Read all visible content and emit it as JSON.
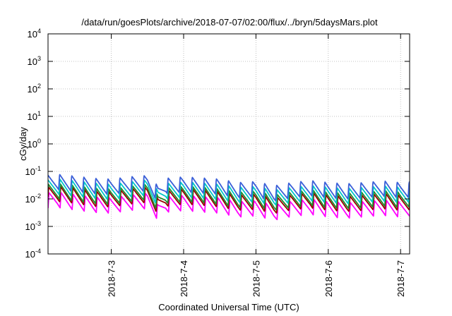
{
  "chart_data": {
    "type": "line",
    "title": "/data/run/goesPlots/archive/2018-07-07/02:00/flux/../bryn/5daysMars.plot",
    "xlabel": "Coordinated Universal Time (UTC)",
    "ylabel": "cGy/day",
    "yscale": "log",
    "ylim": [
      0.0001,
      10000
    ],
    "xlim": [
      "2018-07-02T03:00",
      "2018-07-07T03:00"
    ],
    "grid": true,
    "legend": "none",
    "x_ticks": [
      {
        "x": "2018-07-03T00:00",
        "label": "2018-7-3"
      },
      {
        "x": "2018-07-04T00:00",
        "label": "2018-7-4"
      },
      {
        "x": "2018-07-05T00:00",
        "label": "2018-7-5"
      },
      {
        "x": "2018-07-06T00:00",
        "label": "2018-7-6"
      },
      {
        "x": "2018-07-07T00:00",
        "label": "2018-7-7"
      }
    ],
    "y_ticks": [
      {
        "y": 0.0001,
        "base": "10",
        "exp": "-4"
      },
      {
        "y": 0.001,
        "base": "10",
        "exp": "-3"
      },
      {
        "y": 0.01,
        "base": "10",
        "exp": "-2"
      },
      {
        "y": 0.1,
        "base": "10",
        "exp": "-1"
      },
      {
        "y": 1,
        "base": "10",
        "exp": "0"
      },
      {
        "y": 10,
        "base": "10",
        "exp": "1"
      },
      {
        "y": 100,
        "base": "10",
        "exp": "2"
      },
      {
        "y": 1000,
        "base": "10",
        "exp": "3"
      },
      {
        "y": 10000,
        "base": "10",
        "exp": "4"
      }
    ],
    "series": [
      {
        "color": "#ff00ff",
        "points": [
          [
            "2018-07-02T03:00",
            0.0088
          ],
          [
            "2018-07-02T06:00",
            0.0094
          ],
          [
            "2018-07-02T12:00",
            0.0076
          ],
          [
            "2018-07-02T18:00",
            0.0062
          ],
          [
            "2018-07-03T00:00",
            0.0058
          ],
          [
            "2018-07-03T06:00",
            0.0072
          ],
          [
            "2018-07-03T12:00",
            0.0085
          ],
          [
            "2018-07-03T15:30",
            0.0033
          ],
          [
            "2018-07-03T18:00",
            0.0062
          ],
          [
            "2018-07-04T00:00",
            0.0072
          ],
          [
            "2018-07-04T06:00",
            0.0064
          ],
          [
            "2018-07-04T12:00",
            0.0058
          ],
          [
            "2018-07-04T18:00",
            0.0042
          ],
          [
            "2018-07-05T00:00",
            0.0046
          ],
          [
            "2018-07-05T06:00",
            0.0032
          ],
          [
            "2018-07-05T12:00",
            0.0044
          ],
          [
            "2018-07-05T18:00",
            0.0052
          ],
          [
            "2018-07-06T00:00",
            0.0042
          ],
          [
            "2018-07-06T06:00",
            0.0038
          ],
          [
            "2018-07-06T12:00",
            0.0043
          ],
          [
            "2018-07-06T18:00",
            0.0048
          ],
          [
            "2018-07-07T00:00",
            0.0042
          ],
          [
            "2018-07-07T03:00",
            0.0045
          ]
        ]
      },
      {
        "color": "#990000",
        "points": [
          [
            "2018-07-02T03:00",
            0.014
          ],
          [
            "2018-07-02T06:00",
            0.015
          ],
          [
            "2018-07-02T12:00",
            0.013
          ],
          [
            "2018-07-02T18:00",
            0.01
          ],
          [
            "2018-07-03T00:00",
            0.0095
          ],
          [
            "2018-07-03T06:00",
            0.012
          ],
          [
            "2018-07-03T12:00",
            0.014
          ],
          [
            "2018-07-03T15:30",
            0.0055
          ],
          [
            "2018-07-03T18:00",
            0.01
          ],
          [
            "2018-07-04T00:00",
            0.012
          ],
          [
            "2018-07-04T06:00",
            0.011
          ],
          [
            "2018-07-04T12:00",
            0.0095
          ],
          [
            "2018-07-04T18:00",
            0.0072
          ],
          [
            "2018-07-05T00:00",
            0.0078
          ],
          [
            "2018-07-05T06:00",
            0.0055
          ],
          [
            "2018-07-05T12:00",
            0.0075
          ],
          [
            "2018-07-05T18:00",
            0.0088
          ],
          [
            "2018-07-06T00:00",
            0.0072
          ],
          [
            "2018-07-06T06:00",
            0.0065
          ],
          [
            "2018-07-06T12:00",
            0.0072
          ],
          [
            "2018-07-06T18:00",
            0.0082
          ],
          [
            "2018-07-07T00:00",
            0.0072
          ],
          [
            "2018-07-07T03:00",
            0.0076
          ]
        ]
      },
      {
        "color": "#1e8c2d",
        "points": [
          [
            "2018-07-02T03:00",
            0.018
          ],
          [
            "2018-07-02T06:00",
            0.019
          ],
          [
            "2018-07-02T12:00",
            0.016
          ],
          [
            "2018-07-02T18:00",
            0.013
          ],
          [
            "2018-07-03T00:00",
            0.012
          ],
          [
            "2018-07-03T06:00",
            0.015
          ],
          [
            "2018-07-03T12:00",
            0.018
          ],
          [
            "2018-07-03T15:30",
            0.0072
          ],
          [
            "2018-07-03T18:00",
            0.013
          ],
          [
            "2018-07-04T00:00",
            0.015
          ],
          [
            "2018-07-04T06:00",
            0.014
          ],
          [
            "2018-07-04T12:00",
            0.012
          ],
          [
            "2018-07-04T18:00",
            0.0092
          ],
          [
            "2018-07-05T00:00",
            0.01
          ],
          [
            "2018-07-05T06:00",
            0.0072
          ],
          [
            "2018-07-05T12:00",
            0.0095
          ],
          [
            "2018-07-05T18:00",
            0.011
          ],
          [
            "2018-07-06T00:00",
            0.0092
          ],
          [
            "2018-07-06T06:00",
            0.0084
          ],
          [
            "2018-07-06T12:00",
            0.0092
          ],
          [
            "2018-07-06T18:00",
            0.0105
          ],
          [
            "2018-07-07T00:00",
            0.0092
          ],
          [
            "2018-07-07T03:00",
            0.0098
          ]
        ]
      },
      {
        "color": "#00c8c8",
        "points": [
          [
            "2018-07-02T03:00",
            0.026
          ],
          [
            "2018-07-02T06:00",
            0.028
          ],
          [
            "2018-07-02T12:00",
            0.024
          ],
          [
            "2018-07-02T18:00",
            0.02
          ],
          [
            "2018-07-03T00:00",
            0.018
          ],
          [
            "2018-07-03T06:00",
            0.022
          ],
          [
            "2018-07-03T12:00",
            0.026
          ],
          [
            "2018-07-03T15:30",
            0.011
          ],
          [
            "2018-07-03T18:00",
            0.019
          ],
          [
            "2018-07-04T00:00",
            0.022
          ],
          [
            "2018-07-04T06:00",
            0.02
          ],
          [
            "2018-07-04T12:00",
            0.018
          ],
          [
            "2018-07-04T18:00",
            0.014
          ],
          [
            "2018-07-05T00:00",
            0.015
          ],
          [
            "2018-07-05T06:00",
            0.011
          ],
          [
            "2018-07-05T12:00",
            0.014
          ],
          [
            "2018-07-05T18:00",
            0.016
          ],
          [
            "2018-07-06T00:00",
            0.014
          ],
          [
            "2018-07-06T06:00",
            0.0125
          ],
          [
            "2018-07-06T12:00",
            0.014
          ],
          [
            "2018-07-06T18:00",
            0.0155
          ],
          [
            "2018-07-07T00:00",
            0.014
          ],
          [
            "2018-07-07T03:00",
            0.0145
          ]
        ]
      },
      {
        "color": "#3a5fd8",
        "points": [
          [
            "2018-07-02T03:00",
            0.04
          ],
          [
            "2018-07-02T06:00",
            0.042
          ],
          [
            "2018-07-02T12:00",
            0.036
          ],
          [
            "2018-07-02T18:00",
            0.03
          ],
          [
            "2018-07-03T00:00",
            0.028
          ],
          [
            "2018-07-03T06:00",
            0.034
          ],
          [
            "2018-07-03T12:00",
            0.038
          ],
          [
            "2018-07-03T15:30",
            0.016
          ],
          [
            "2018-07-03T18:00",
            0.03
          ],
          [
            "2018-07-04T00:00",
            0.034
          ],
          [
            "2018-07-04T06:00",
            0.031
          ],
          [
            "2018-07-04T12:00",
            0.028
          ],
          [
            "2018-07-04T18:00",
            0.021
          ],
          [
            "2018-07-05T00:00",
            0.023
          ],
          [
            "2018-07-05T06:00",
            0.016
          ],
          [
            "2018-07-05T12:00",
            0.021
          ],
          [
            "2018-07-05T18:00",
            0.025
          ],
          [
            "2018-07-06T00:00",
            0.021
          ],
          [
            "2018-07-06T06:00",
            0.019
          ],
          [
            "2018-07-06T12:00",
            0.021
          ],
          [
            "2018-07-06T18:00",
            0.024
          ],
          [
            "2018-07-07T00:00",
            0.021
          ],
          [
            "2018-07-07T03:00",
            0.022
          ]
        ]
      }
    ]
  }
}
